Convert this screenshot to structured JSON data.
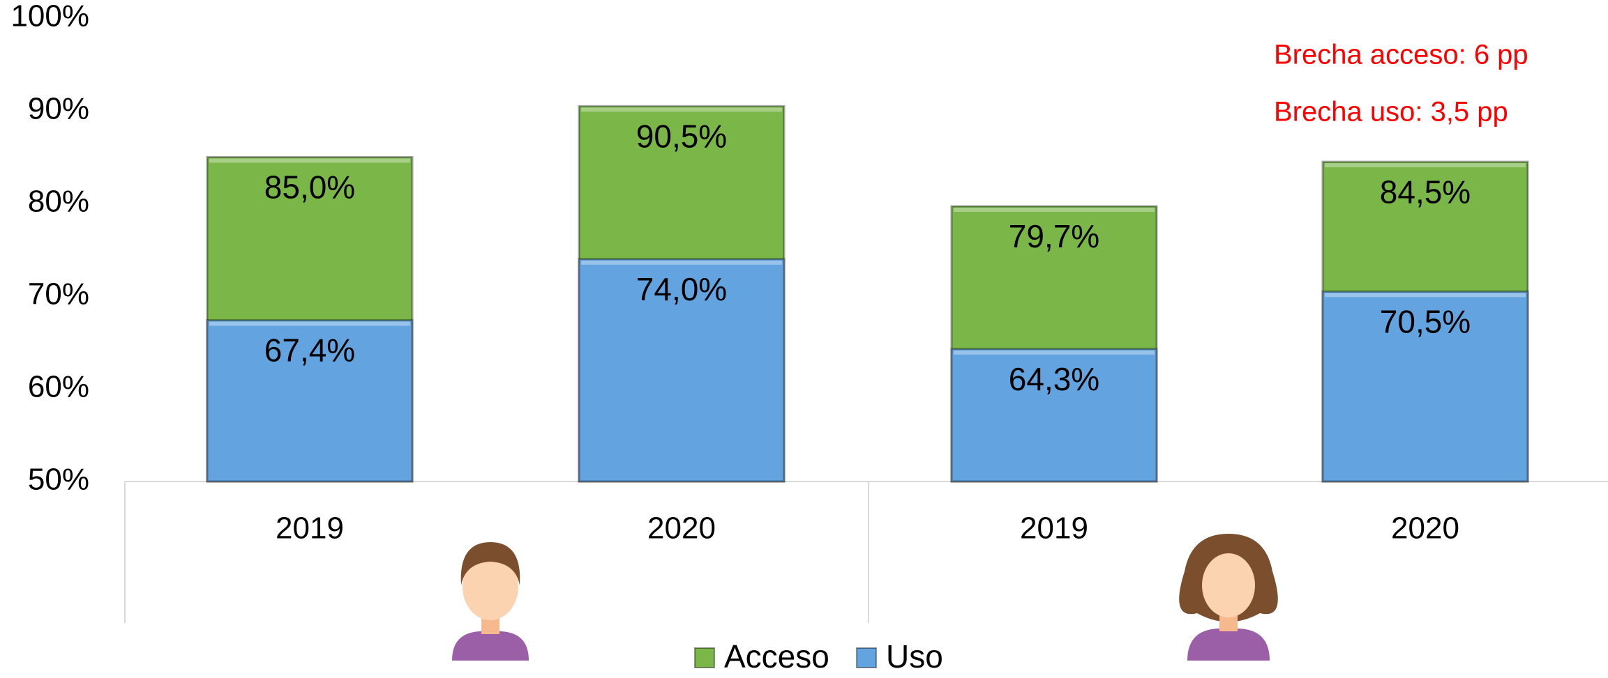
{
  "chart_data": {
    "type": "bar",
    "categories": [
      "2019",
      "2020",
      "2019",
      "2020"
    ],
    "series": [
      {
        "name": "Acceso",
        "color": "#7ab648",
        "values": [
          85.0,
          90.5,
          79.7,
          84.5
        ],
        "value_labels": [
          "85,0%",
          "90,5%",
          "79,7%",
          "84,5%"
        ]
      },
      {
        "name": "Uso",
        "color": "#63a4e0",
        "values": [
          67.4,
          74.0,
          64.3,
          70.5
        ],
        "value_labels": [
          "67,4%",
          "74,0%",
          "64,3%",
          "70,5%"
        ]
      }
    ],
    "ylim": [
      50,
      100
    ],
    "yticks": [
      {
        "value": 50,
        "label": "50%"
      },
      {
        "value": 60,
        "label": "60%"
      },
      {
        "value": 70,
        "label": "70%"
      },
      {
        "value": 80,
        "label": "80%"
      },
      {
        "value": 90,
        "label": "90%"
      },
      {
        "value": 100,
        "label": "100%"
      }
    ],
    "annotations": [
      "Brecha acceso: 6 pp",
      "Brecha uso: 3,5 pp"
    ]
  }
}
